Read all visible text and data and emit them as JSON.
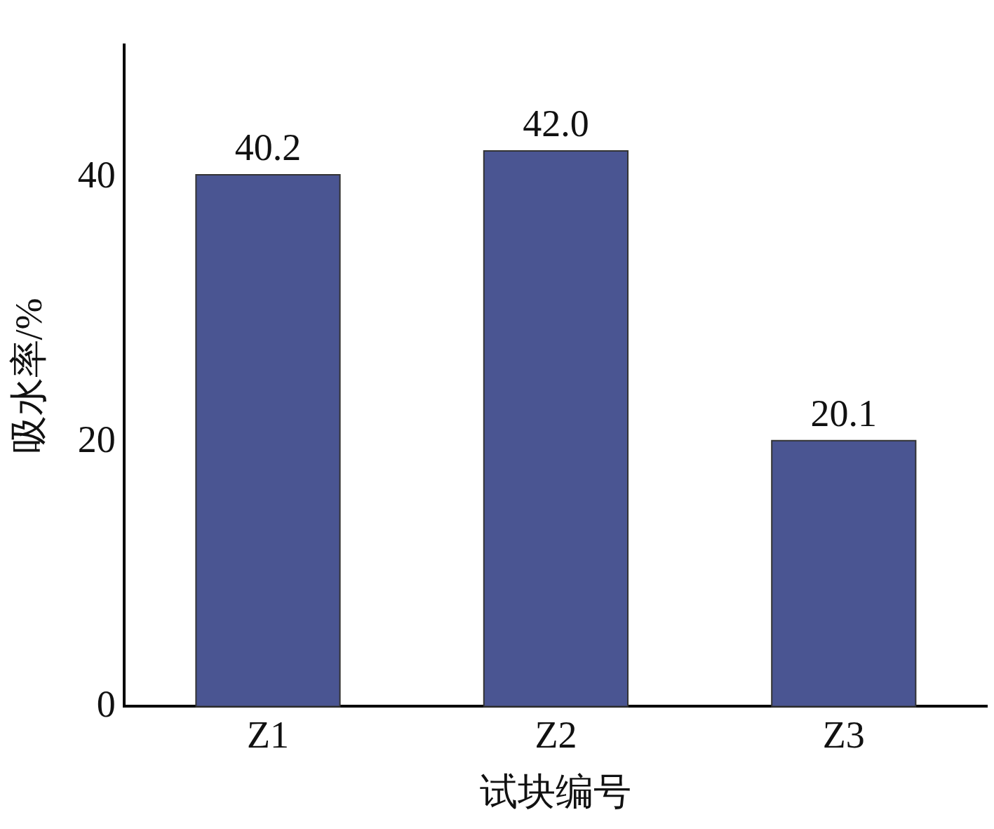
{
  "chart_data": {
    "type": "bar",
    "xlabel": "试块编号",
    "ylabel": "吸水率/%",
    "categories": [
      "Z1",
      "Z2",
      "Z3"
    ],
    "values": [
      40.2,
      42.0,
      20.1
    ],
    "value_labels": [
      "40.2",
      "42.0",
      "20.1"
    ],
    "color": "#4a5592",
    "ylim": [
      0,
      50
    ],
    "yticks": [
      0,
      20,
      40
    ],
    "grid": false,
    "legend": false
  }
}
